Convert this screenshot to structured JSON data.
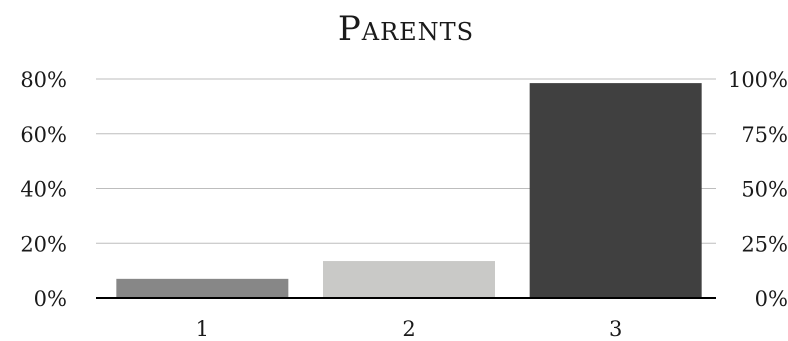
{
  "chart_data": {
    "type": "bar",
    "title": "Parents",
    "categories": [
      "1",
      "2",
      "3"
    ],
    "values": [
      7,
      13.5,
      78.5
    ],
    "colors": [
      "#878787",
      "#c9c9c7",
      "#404040"
    ],
    "ylim": [
      0,
      80
    ],
    "y_ticks": [
      "0%",
      "20%",
      "40%",
      "60%",
      "80%"
    ],
    "y_tick_values": [
      0,
      20,
      40,
      60,
      80
    ],
    "y2_ticks": [
      "0%",
      "25%",
      "50%",
      "75%",
      "100%"
    ],
    "grid": true,
    "legend": "none"
  }
}
